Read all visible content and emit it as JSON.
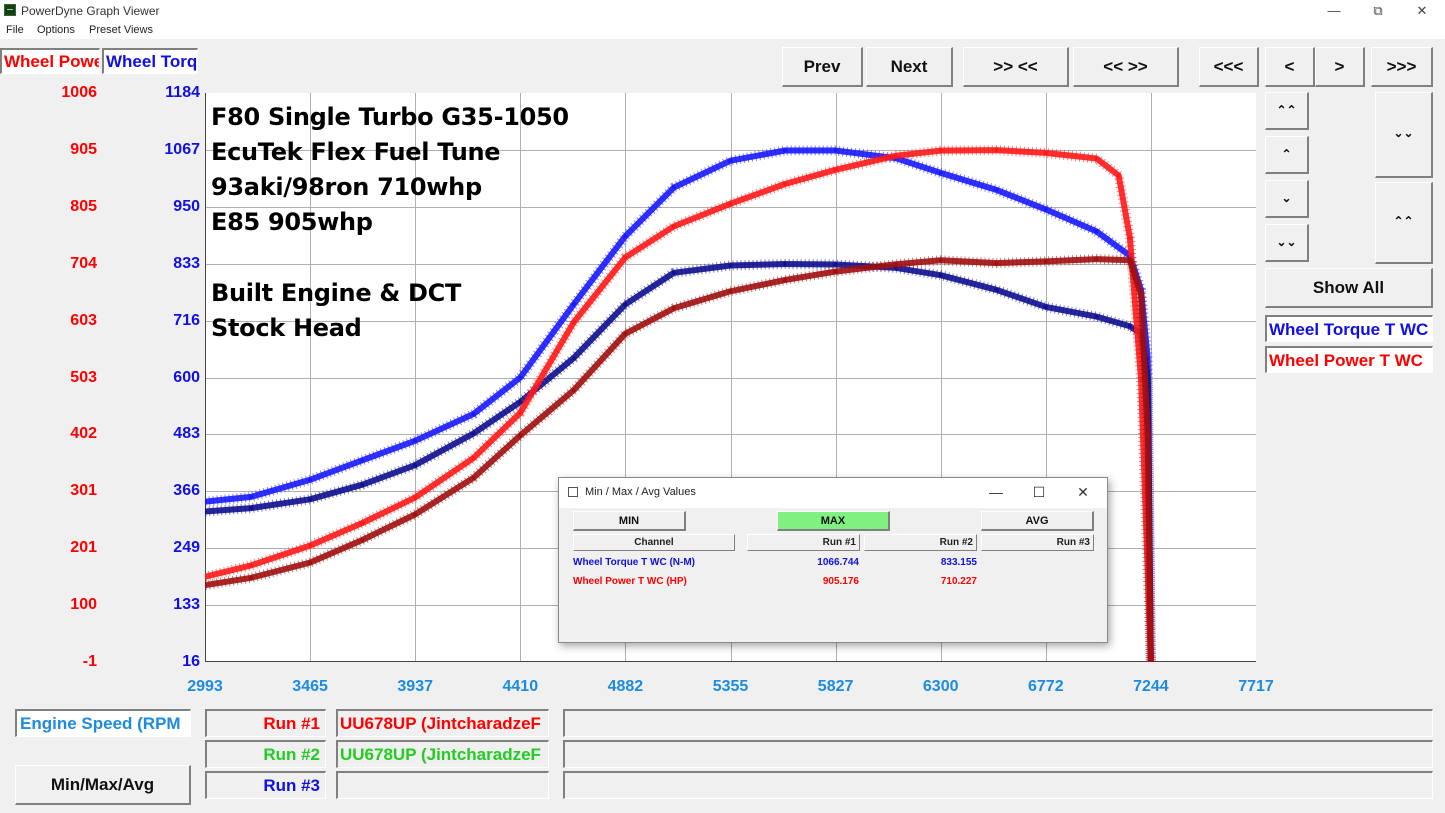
{
  "window": {
    "title": "PowerDyne Graph Viewer"
  },
  "menu": [
    "File",
    "Options",
    "Preset Views"
  ],
  "nav_buttons": [
    "Prev",
    "Next",
    ">> <<",
    "<< >>",
    "<<<",
    "<",
    ">",
    ">>>"
  ],
  "axis_tabs": {
    "left": "Wheel Power T WC",
    "right": "Wheel Torque T WC"
  },
  "colors": {
    "power": "#ff0000",
    "torque": "#1010e0",
    "x_axis": "#1c8be0",
    "run1_text": "#ff0000",
    "run2_text": "#22cc22",
    "run3_text": "#1010e0",
    "max_button": "#80f080",
    "grid": "#b0b0b0"
  },
  "annotation": {
    "lines": [
      "F80 Single Turbo G35-1050",
      "EcuTek Flex Fuel Tune",
      "93aki/98ron 710whp",
      "E85 905whp",
      "",
      "Built Engine & DCT",
      "Stock Head"
    ]
  },
  "right_panel": {
    "show_all": "Show All",
    "legend": [
      "Wheel Torque T WC",
      "Wheel Power T WC"
    ],
    "small_buttons": [
      "up-fast-icon",
      "up-icon",
      "down-icon",
      "down-fast-icon"
    ]
  },
  "bottom": {
    "x_channel": "Engine Speed (RPM",
    "minmax_button": "Min/Max/Avg",
    "runs": [
      {
        "label": "Run #1",
        "file": "UU678UP (JintcharadzeF"
      },
      {
        "label": "Run #2",
        "file": "UU678UP (JintcharadzeF"
      },
      {
        "label": "Run #3",
        "file": ""
      }
    ]
  },
  "dialog": {
    "title": "Min / Max / Avg Values",
    "buttons": [
      "MIN",
      "MAX",
      "AVG"
    ],
    "columns": [
      "Channel",
      "Run #1",
      "Run #2",
      "Run #3"
    ],
    "rows": [
      {
        "channel": "Wheel Torque T WC (N-M)",
        "run1": "1066.744",
        "run2": "833.155",
        "run3": ""
      },
      {
        "channel": "Wheel Power T WC (HP)",
        "run1": "905.176",
        "run2": "710.227",
        "run3": ""
      }
    ]
  },
  "chart_data": {
    "type": "line",
    "xlabel": "Engine Speed (RPM",
    "x_ticks": [
      "2993",
      "3465",
      "3937",
      "4410",
      "4882",
      "5355",
      "5827",
      "6300",
      "6772",
      "7244",
      "7717"
    ],
    "xlim": [
      2993,
      7717
    ],
    "y_left": {
      "label": "Wheel Power T WC",
      "ticks": [
        "1006",
        "905",
        "805",
        "704",
        "603",
        "503",
        "402",
        "301",
        "201",
        "100",
        "-1"
      ],
      "ylim": [
        -1,
        1006
      ]
    },
    "y_right": {
      "label": "Wheel Torque T WC",
      "ticks": [
        "1184",
        "1067",
        "950",
        "833",
        "716",
        "600",
        "483",
        "366",
        "249",
        "133",
        "16"
      ],
      "ylim": [
        16,
        1184
      ]
    },
    "grid": true,
    "series": [
      {
        "name": "Wheel Torque T WC",
        "run": "Run #1",
        "axis": "right",
        "color": "#1a1aff",
        "x": [
          2993,
          3200,
          3465,
          3700,
          3937,
          4200,
          4410,
          4650,
          4882,
          5100,
          5355,
          5600,
          5827,
          6100,
          6300,
          6550,
          6772,
          7000,
          7150,
          7200,
          7230,
          7244
        ],
        "y": [
          345,
          355,
          390,
          430,
          470,
          525,
          600,
          750,
          890,
          990,
          1045,
          1066,
          1066,
          1050,
          1020,
          985,
          945,
          900,
          850,
          780,
          640,
          16
        ]
      },
      {
        "name": "Wheel Torque T WC",
        "run": "Run #2",
        "axis": "right",
        "color": "#101090",
        "x": [
          2993,
          3200,
          3465,
          3700,
          3937,
          4200,
          4410,
          4650,
          4882,
          5100,
          5355,
          5600,
          5827,
          6100,
          6300,
          6550,
          6772,
          7000,
          7150,
          7200,
          7230,
          7244
        ],
        "y": [
          325,
          332,
          350,
          380,
          420,
          485,
          550,
          640,
          750,
          815,
          830,
          833,
          832,
          825,
          810,
          780,
          745,
          725,
          705,
          690,
          600,
          16
        ]
      },
      {
        "name": "Wheel Power T WC",
        "run": "Run #1",
        "axis": "left",
        "color": "#ff1a1a",
        "x": [
          2993,
          3200,
          3465,
          3700,
          3937,
          4200,
          4410,
          4650,
          4882,
          5100,
          5355,
          5600,
          5827,
          6100,
          6300,
          6550,
          6772,
          7000,
          7100,
          7150,
          7200,
          7244
        ],
        "y": [
          150,
          170,
          205,
          245,
          290,
          360,
          440,
          600,
          715,
          770,
          810,
          845,
          870,
          895,
          904,
          905,
          900,
          890,
          860,
          750,
          500,
          -1
        ]
      },
      {
        "name": "Wheel Power T WC",
        "run": "Run #2",
        "axis": "left",
        "color": "#a01010",
        "x": [
          2993,
          3200,
          3465,
          3700,
          3937,
          4200,
          4410,
          4650,
          4882,
          5100,
          5355,
          5600,
          5827,
          6100,
          6300,
          6550,
          6772,
          7000,
          7150,
          7200,
          7230,
          7244
        ],
        "y": [
          135,
          148,
          175,
          215,
          260,
          325,
          400,
          480,
          580,
          625,
          655,
          675,
          690,
          703,
          710,
          705,
          708,
          712,
          710,
          650,
          400,
          -1
        ]
      }
    ]
  }
}
